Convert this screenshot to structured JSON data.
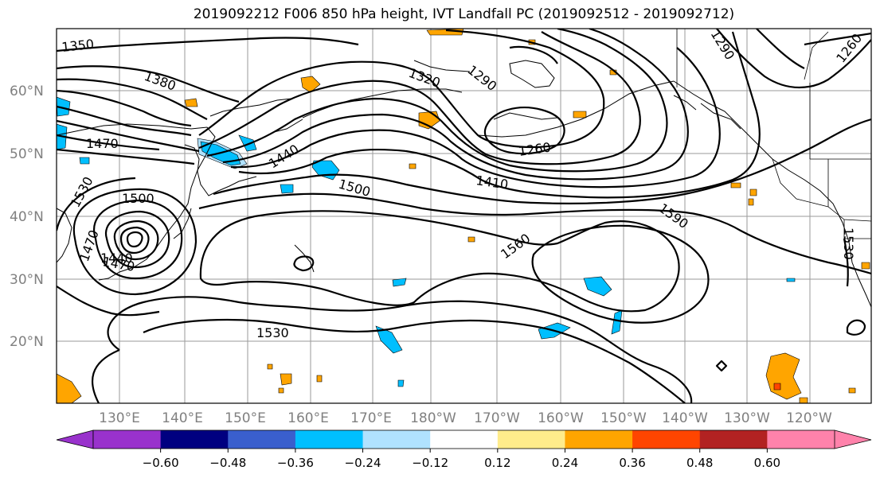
{
  "title": "2019092212 F006 850 hPa height, IVT Landfall PC (2019092512 - 2019092712)",
  "lat_labels": [
    "60°N",
    "50°N",
    "40°N",
    "30°N",
    "20°N"
  ],
  "lon_labels": [
    "130°E",
    "140°E",
    "150°E",
    "160°E",
    "170°E",
    "180°W",
    "170°W",
    "160°W",
    "150°W",
    "140°W",
    "130°W",
    "120°W"
  ],
  "contour_labels": [
    "1350",
    "1380",
    "1470",
    "1530",
    "1500",
    "1470",
    "1440",
    "1440",
    "1500",
    "1320",
    "1290",
    "1260",
    "1410",
    "1590",
    "1560",
    "1530",
    "1290",
    "1260",
    "1530",
    "1470"
  ],
  "colorbar": {
    "ticks": [
      "−0.60",
      "−0.48",
      "−0.36",
      "−0.24",
      "−0.12",
      "0.12",
      "0.24",
      "0.36",
      "0.48",
      "0.60"
    ],
    "colors": [
      "#9932cc",
      "#000080",
      "#3a5fcd",
      "#00bfff",
      "#b0e2ff",
      "#ffffff",
      "#ffec8b",
      "#ffa500",
      "#ff4500",
      "#b22222",
      "#ff82ab"
    ]
  }
}
